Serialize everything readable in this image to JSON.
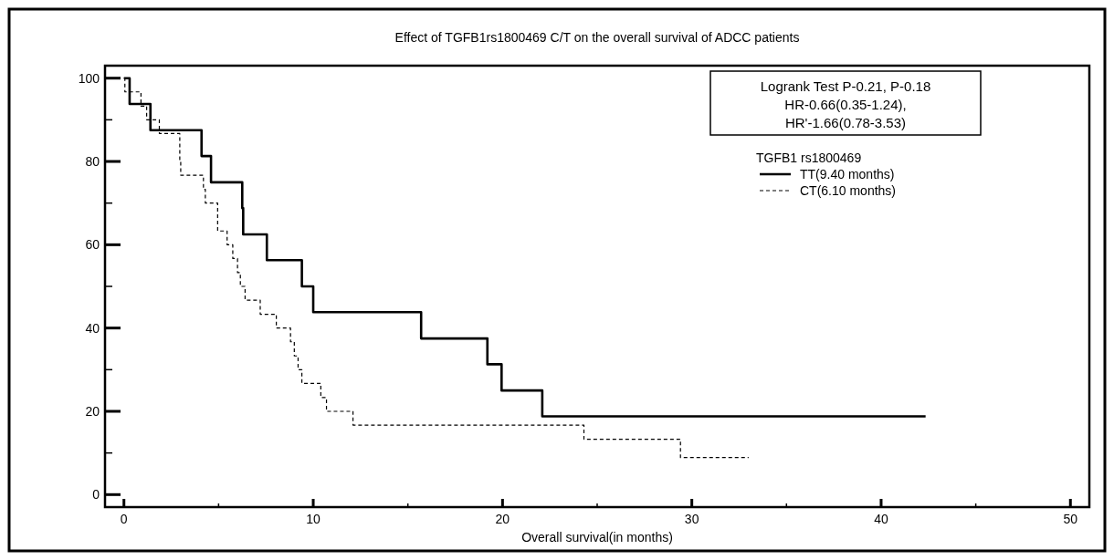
{
  "chart_data": {
    "type": "step",
    "title": "Effect of TGFB1rs1800469 C/T on the overall survival of ADCC patients",
    "xlabel": "Overall survival(in months)",
    "legend_title": "TGFB1 rs1800469",
    "legend": "top right",
    "annotations": [
      "Logrank Test P-0.21, P-0.18",
      "HR-0.66(0.35-1.24),",
      "HR'-1.66(0.78-3.53)"
    ],
    "xlim": [
      -1,
      51
    ],
    "ylim": [
      -3,
      103
    ],
    "xticks": [
      0,
      {
        "value": 5,
        "label": null
      },
      10,
      {
        "value": 15,
        "label": null
      },
      20,
      {
        "value": 25,
        "label": null
      },
      30,
      {
        "value": 35,
        "label": null
      },
      40,
      {
        "value": 45,
        "label": null
      },
      50
    ],
    "yticks": [
      0,
      {
        "value": 10,
        "label": null
      },
      20,
      {
        "value": 30,
        "label": null
      },
      40,
      {
        "value": 50,
        "label": null
      },
      60,
      {
        "value": 70,
        "label": null
      },
      80,
      {
        "value": 90,
        "label": null
      },
      100
    ],
    "series": [
      {
        "name": "TT(9.40 months)",
        "color": "#000000",
        "line_style": "solid",
        "x": [
          0,
          0.3,
          1.4,
          4.1,
          4.6,
          6.25,
          6.3,
          7.55,
          9.4,
          10,
          15.7,
          19.2,
          19.95,
          22.1,
          42.35
        ],
        "values": [
          100,
          93.8,
          87.5,
          81.3,
          75,
          68.8,
          62.5,
          56.3,
          50,
          43.8,
          37.5,
          31.3,
          25,
          18.8,
          18.8
        ]
      },
      {
        "name": "CT(6.10 months)",
        "color": "#000000",
        "line_style": "dashed",
        "x": [
          0,
          0.05,
          0.9,
          1.2,
          1.87,
          2.95,
          3.0,
          4.2,
          4.3,
          4.95,
          5.45,
          5.75,
          6.0,
          6.15,
          6.4,
          7.2,
          8.05,
          8.8,
          9.0,
          9.2,
          9.4,
          10.4,
          10.7,
          12.1,
          24.3,
          29.4,
          33.0
        ],
        "values": [
          100,
          96.7,
          93.3,
          90,
          86.7,
          80,
          76.7,
          73.3,
          70,
          63.3,
          60,
          56.7,
          53.3,
          50,
          46.7,
          43.3,
          40,
          36.7,
          33.3,
          30,
          26.7,
          23.3,
          20,
          16.7,
          13.3,
          8.9,
          8.9
        ]
      }
    ]
  }
}
